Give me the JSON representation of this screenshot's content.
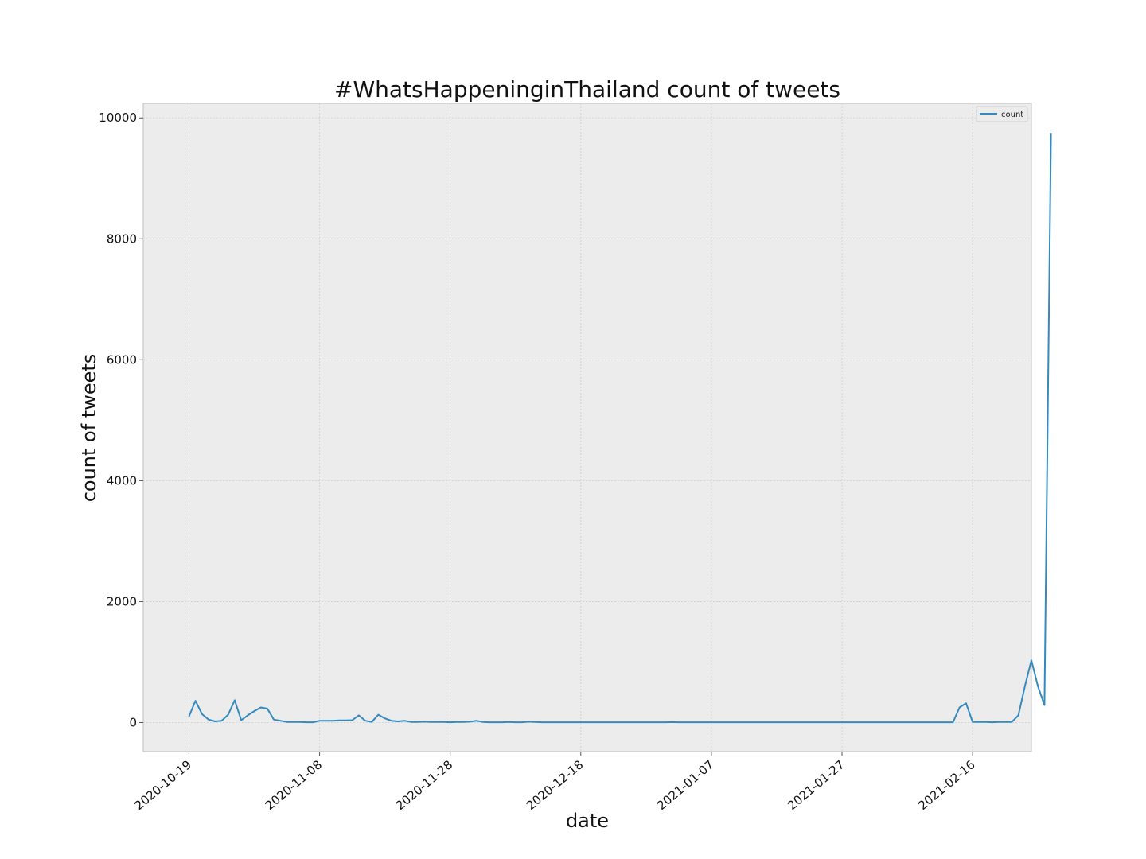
{
  "chart_data": {
    "type": "line",
    "title": "#WhatsHappeninginThailand count of tweets",
    "xlabel": "date",
    "ylabel": "count of tweets",
    "x_start": "2020-10-19",
    "x_end": "2021-02-20",
    "xlim": [
      "2020-10-12",
      "2021-02-25"
    ],
    "ylim": [
      -480,
      10240
    ],
    "xticks": [
      "2020-10-19",
      "2020-11-08",
      "2020-11-28",
      "2020-12-18",
      "2021-01-07",
      "2021-01-27",
      "2021-02-16"
    ],
    "yticks": [
      0,
      2000,
      4000,
      6000,
      8000,
      10000
    ],
    "grid": true,
    "legend": {
      "position": "top-right",
      "entries": [
        "count"
      ]
    },
    "colors": {
      "series": "#348abd",
      "plot_background": "#ececec",
      "grid": "#cfcfcf"
    },
    "series": [
      {
        "name": "count",
        "values": [
          100,
          360,
          140,
          50,
          20,
          30,
          130,
          370,
          40,
          120,
          190,
          250,
          230,
          50,
          30,
          10,
          10,
          10,
          5,
          5,
          30,
          30,
          30,
          35,
          35,
          40,
          120,
          30,
          10,
          130,
          70,
          30,
          20,
          30,
          10,
          10,
          15,
          10,
          10,
          10,
          5,
          10,
          10,
          15,
          30,
          10,
          5,
          5,
          5,
          10,
          5,
          5,
          15,
          10,
          5,
          5,
          5,
          5,
          5,
          5,
          5,
          5,
          5,
          5,
          5,
          5,
          5,
          5,
          5,
          5,
          5,
          5,
          5,
          5,
          8,
          5,
          5,
          5,
          5,
          5,
          5,
          5,
          5,
          5,
          5,
          5,
          5,
          5,
          5,
          5,
          5,
          5,
          5,
          5,
          5,
          5,
          5,
          5,
          5,
          5,
          5,
          5,
          5,
          5,
          5,
          5,
          5,
          5,
          5,
          5,
          5,
          5,
          5,
          5,
          5,
          5,
          5,
          5,
          250,
          320,
          10,
          10,
          10,
          5,
          10,
          10,
          10,
          120,
          600,
          1030,
          600,
          290,
          9750
        ]
      }
    ]
  }
}
